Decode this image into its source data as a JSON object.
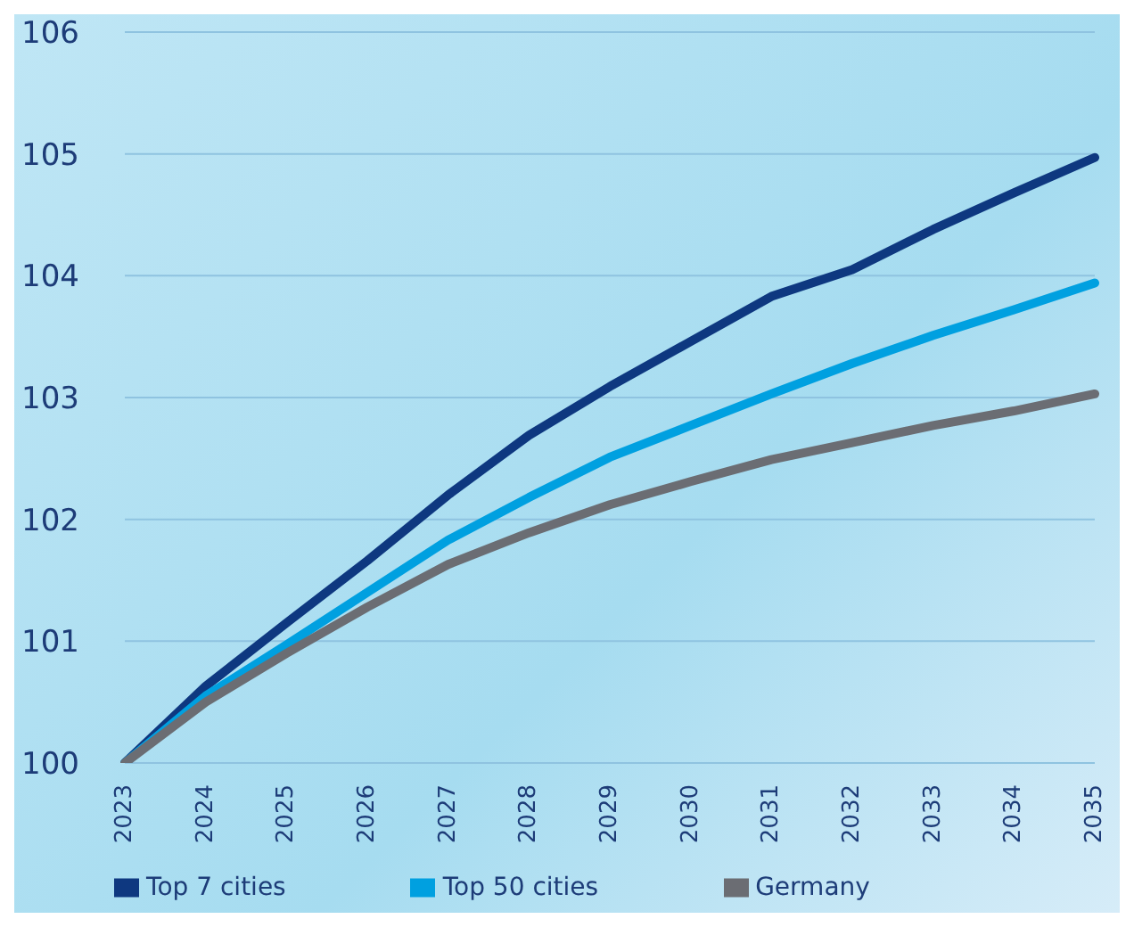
{
  "chart_data": {
    "type": "line",
    "categories": [
      "2023",
      "2024",
      "2025",
      "2026",
      "2027",
      "2028",
      "2029",
      "2030",
      "2031",
      "2032",
      "2033",
      "2034",
      "2035"
    ],
    "series": [
      {
        "name": "Top 7 cities",
        "color": "#0e3880",
        "values": [
          100,
          100.63,
          101.15,
          101.66,
          102.2,
          102.69,
          103.09,
          103.46,
          103.83,
          104.05,
          104.38,
          104.68,
          104.97
        ]
      },
      {
        "name": "Top 50 cities",
        "color": "#00a0e0",
        "values": [
          100,
          100.55,
          100.97,
          101.4,
          101.83,
          102.18,
          102.51,
          102.77,
          103.03,
          103.28,
          103.51,
          103.72,
          103.94
        ]
      },
      {
        "name": "Germany",
        "color": "#6b6d73",
        "values": [
          100,
          100.5,
          100.9,
          101.28,
          101.63,
          101.89,
          102.12,
          102.31,
          102.49,
          102.63,
          102.77,
          102.89,
          103.03
        ]
      }
    ],
    "ylim": [
      100,
      106
    ],
    "yticks": [
      100,
      101,
      102,
      103,
      104,
      105,
      106
    ],
    "grid": "y",
    "legend": "bottom",
    "marker": "none",
    "line_style": "solid"
  }
}
